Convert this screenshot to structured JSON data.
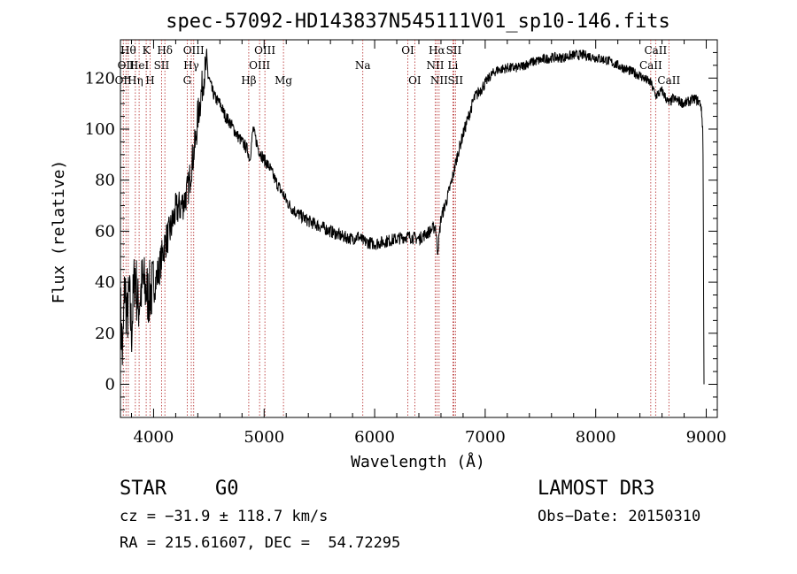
{
  "chart_data": {
    "type": "line",
    "title": "spec-57092-HD143837N545111V01_sp10-146.fits",
    "xlabel": "Wavelength (Å)",
    "ylabel": "Flux (relative)",
    "xlim": [
      3700,
      9100
    ],
    "ylim": [
      -13,
      135
    ],
    "x_ticks": [
      4000,
      5000,
      6000,
      7000,
      8000,
      9000
    ],
    "y_ticks": [
      0,
      20,
      40,
      60,
      80,
      100,
      120
    ],
    "series": [
      {
        "name": "flux",
        "x": [
          3700,
          3720,
          3740,
          3760,
          3780,
          3800,
          3830,
          3860,
          3900,
          3950,
          4000,
          4050,
          4100,
          4150,
          4200,
          4250,
          4280,
          4300,
          4320,
          4340,
          4360,
          4380,
          4400,
          4420,
          4450,
          4480,
          4500,
          4530,
          4560,
          4600,
          4650,
          4700,
          4750,
          4800,
          4850,
          4870,
          4900,
          4950,
          5000,
          5050,
          5100,
          5150,
          5180,
          5200,
          5250,
          5300,
          5400,
          5500,
          5600,
          5700,
          5800,
          5850,
          5900,
          6000,
          6100,
          6200,
          6300,
          6400,
          6500,
          6550,
          6570,
          6600,
          6650,
          6700,
          6750,
          6800,
          6850,
          6900,
          6950,
          7000,
          7050,
          7100,
          7200,
          7300,
          7400,
          7500,
          7600,
          7700,
          7800,
          7900,
          8000,
          8100,
          8200,
          8300,
          8400,
          8500,
          8542,
          8600,
          8662,
          8700,
          8800,
          8900,
          8950,
          8970,
          8980
        ],
        "y": [
          30,
          10,
          40,
          25,
          35,
          20,
          45,
          30,
          40,
          35,
          38,
          45,
          55,
          60,
          68,
          70,
          72,
          75,
          78,
          85,
          90,
          95,
          105,
          110,
          120,
          125,
          120,
          115,
          112,
          110,
          105,
          102,
          98,
          95,
          92,
          88,
          100,
          92,
          88,
          85,
          80,
          76,
          74,
          72,
          69,
          67,
          64,
          62,
          60,
          58,
          57,
          58,
          56,
          55,
          56,
          57,
          58,
          57,
          60,
          62,
          52,
          65,
          72,
          80,
          90,
          98,
          105,
          112,
          115,
          118,
          121,
          123,
          124,
          124,
          126,
          127,
          128,
          128,
          129,
          129,
          128,
          127,
          125,
          123,
          121,
          118,
          113,
          115,
          110,
          112,
          110,
          112,
          110,
          100,
          0
        ]
      }
    ],
    "line_markers": [
      {
        "wavelength": 3726,
        "label": "OII",
        "row": 2
      },
      {
        "wavelength": 3750,
        "label": "OII",
        "row": 1
      },
      {
        "wavelength": 3771,
        "label": "Hθ",
        "row": 0
      },
      {
        "wavelength": 3835,
        "label": "Hη",
        "row": 2
      },
      {
        "wavelength": 3869,
        "label": "HeI",
        "row": 1
      },
      {
        "wavelength": 3933,
        "label": "K",
        "row": 0
      },
      {
        "wavelength": 3968,
        "label": "H",
        "row": 2
      },
      {
        "wavelength": 4072,
        "label": "SII",
        "row": 1
      },
      {
        "wavelength": 4102,
        "label": "Hδ",
        "row": 0
      },
      {
        "wavelength": 4304,
        "label": "G",
        "row": 2
      },
      {
        "wavelength": 4341,
        "label": "Hγ",
        "row": 1
      },
      {
        "wavelength": 4363,
        "label": "OIII",
        "row": 0
      },
      {
        "wavelength": 4861,
        "label": "Hβ",
        "row": 2
      },
      {
        "wavelength": 4959,
        "label": "OIII",
        "row": 1
      },
      {
        "wavelength": 5007,
        "label": "OIII",
        "row": 0
      },
      {
        "wavelength": 5175,
        "label": "Mg",
        "row": 2
      },
      {
        "wavelength": 5893,
        "label": "Na",
        "row": 1
      },
      {
        "wavelength": 6300,
        "label": "OI",
        "row": 0
      },
      {
        "wavelength": 6363,
        "label": "OI",
        "row": 2
      },
      {
        "wavelength": 6548,
        "label": "NII",
        "row": 1
      },
      {
        "wavelength": 6563,
        "label": "Hα",
        "row": 0
      },
      {
        "wavelength": 6583,
        "label": "NII",
        "row": 2
      },
      {
        "wavelength": 6708,
        "label": "Li",
        "row": 1
      },
      {
        "wavelength": 6716,
        "label": "SII",
        "row": 0
      },
      {
        "wavelength": 6731,
        "label": "SII",
        "row": 2
      },
      {
        "wavelength": 8498,
        "label": "CaII",
        "row": 1
      },
      {
        "wavelength": 8542,
        "label": "CaII",
        "row": 0
      },
      {
        "wavelength": 8662,
        "label": "CaII",
        "row": 2
      }
    ]
  },
  "info": {
    "object_type": "STAR",
    "subclass": "G0",
    "survey": "LAMOST DR3",
    "cz": "cz = −31.9 ± 118.7 km/s",
    "obs_date": "Obs−Date: 20150310",
    "coords": "RA = 215.61607, DEC =  54.72295"
  }
}
